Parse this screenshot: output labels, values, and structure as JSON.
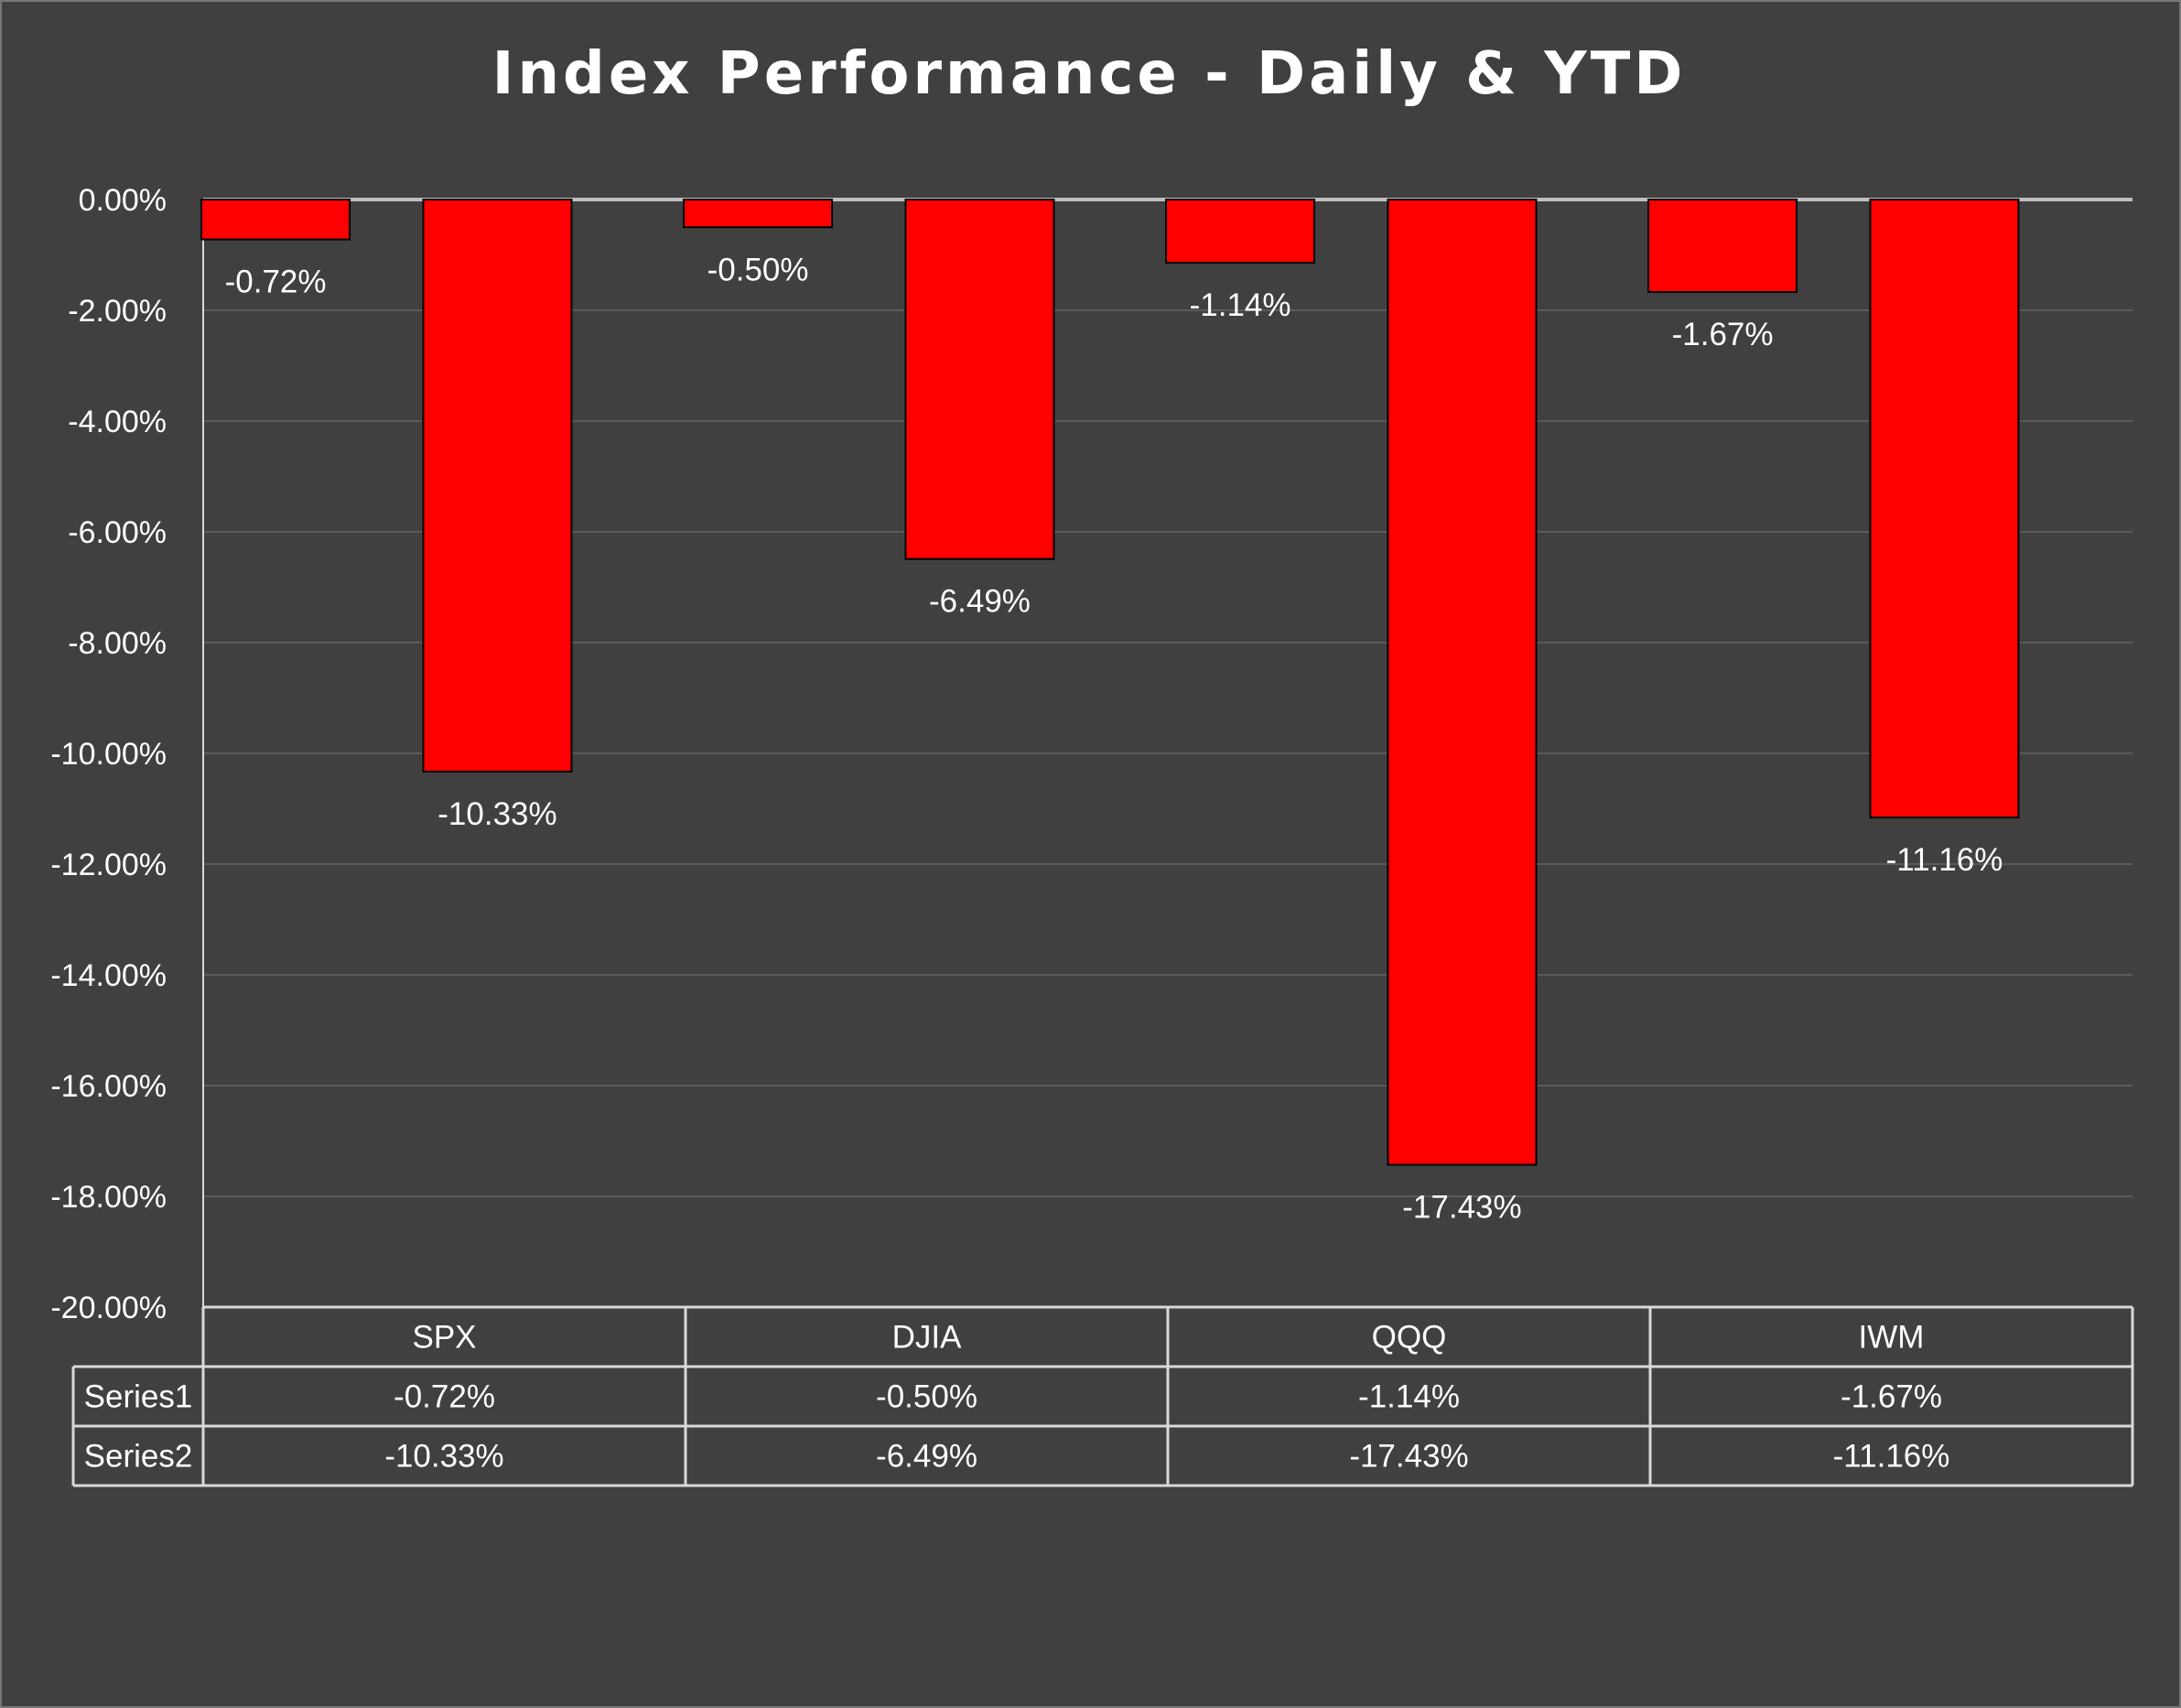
{
  "chart_data": {
    "type": "bar",
    "title": "Index Performance - Daily & YTD",
    "categories": [
      "SPX",
      "DJIA",
      "QQQ",
      "IWM"
    ],
    "series": [
      {
        "name": "Series1",
        "values": [
          -0.72,
          -0.5,
          -1.14,
          -1.67
        ],
        "labels": [
          "-0.72%",
          "-0.50%",
          "-1.14%",
          "-1.67%"
        ]
      },
      {
        "name": "Series2",
        "values": [
          -10.33,
          -6.49,
          -17.43,
          -11.16
        ],
        "labels": [
          "-10.33%",
          "-6.49%",
          "-17.43%",
          "-11.16%"
        ]
      }
    ],
    "ylim": [
      -20,
      0
    ],
    "yticks": [
      0,
      -2,
      -4,
      -6,
      -8,
      -10,
      -12,
      -14,
      -16,
      -18,
      -20
    ],
    "ytick_labels": [
      "0.00%",
      "-2.00%",
      "-4.00%",
      "-6.00%",
      "-8.00%",
      "-10.00%",
      "-12.00%",
      "-14.00%",
      "-16.00%",
      "-18.00%",
      "-20.00%"
    ],
    "grid": true,
    "legend": "data table below chart",
    "data_table": true,
    "colors": {
      "background": "#404040",
      "bar": "#ff0000",
      "bar_edge": "#000000",
      "grid": "#5a5a5a",
      "text": "#ffffff"
    }
  }
}
